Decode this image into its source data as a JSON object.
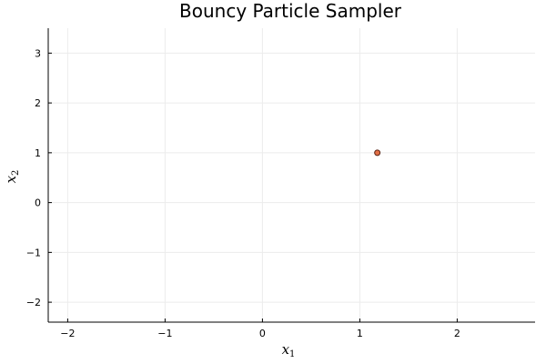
{
  "chart_data": {
    "type": "scatter",
    "title": "Bouncy Particle Sampler",
    "xlabel": "x",
    "xlabel_sub": "1",
    "ylabel": "x",
    "ylabel_sub": "2",
    "xlim": [
      -2.2,
      2.8
    ],
    "ylim": [
      -2.4,
      3.5
    ],
    "xticks": [
      -2,
      -1,
      0,
      1,
      2
    ],
    "yticks": [
      -2,
      -1,
      0,
      1,
      2,
      3
    ],
    "xtick_labels": [
      "−2",
      "−1",
      "0",
      "1",
      "2"
    ],
    "ytick_labels": [
      "−2",
      "−1",
      "0",
      "1",
      "2",
      "3"
    ],
    "grid": true,
    "legend": "none",
    "points": [
      {
        "x": 1.18,
        "y": 1.0
      }
    ],
    "colors": {
      "marker_fill": "#e26f46",
      "marker_stroke": "#5a2414",
      "grid": "#ececec",
      "axis": "#000000"
    }
  }
}
